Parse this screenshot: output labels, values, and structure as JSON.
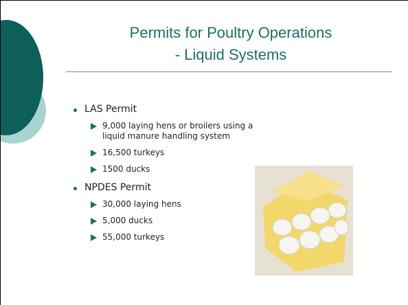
{
  "title": {
    "lines": [
      "Permits for Poultry Operations",
      "- Liquid Systems"
    ]
  },
  "bullets": [
    {
      "text": "LAS Permit",
      "items": [
        "9,000 laying hens or broilers using a liquid manure handling system",
        "16,500 turkeys",
        "1500 ducks"
      ]
    },
    {
      "text": "NPDES Permit",
      "items": [
        "30,000 laying hens",
        "5,000 ducks",
        "55,000 turkeys"
      ]
    }
  ]
}
